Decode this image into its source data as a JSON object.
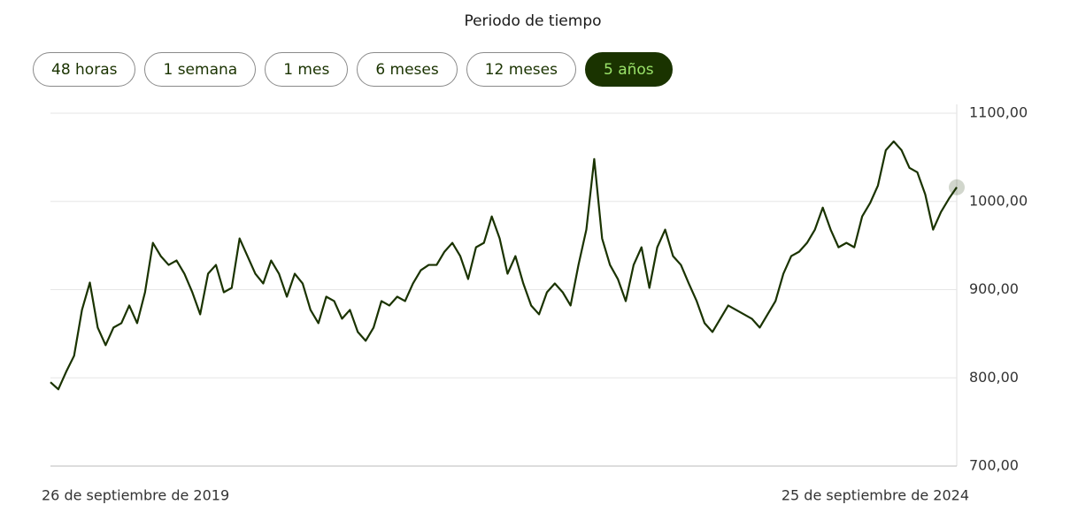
{
  "header": {
    "title": "Periodo de tiempo"
  },
  "buttons": [
    "48 horas",
    "1 semana",
    "1 mes",
    "6 meses",
    "12 meses",
    "5 años"
  ],
  "selected_button": 5,
  "chart_data": {
    "type": "line",
    "color": "#1a3300",
    "grid": true,
    "y_axis_side": "right",
    "ylim": [
      700,
      1100
    ],
    "yticks": [
      {
        "value": 700,
        "label": "700,00"
      },
      {
        "value": 800,
        "label": "800,00"
      },
      {
        "value": 900,
        "label": "900,00"
      },
      {
        "value": 1000,
        "label": "1000,00"
      },
      {
        "value": 1100,
        "label": "1100,00"
      }
    ],
    "categories": [
      "26 de septiembre de 2019",
      null,
      null,
      null,
      null,
      null,
      null,
      null,
      null,
      null,
      null,
      null,
      null,
      null,
      null,
      null,
      null,
      null,
      null,
      null,
      null,
      null,
      null,
      null,
      null,
      null,
      null,
      null,
      null,
      null,
      null,
      null,
      null,
      null,
      null,
      null,
      null,
      null,
      null,
      null,
      null,
      null,
      null,
      null,
      null,
      null,
      null,
      null,
      null,
      null,
      null,
      null,
      null,
      null,
      null,
      null,
      null,
      null,
      null,
      null,
      null,
      null,
      null,
      null,
      null,
      null,
      null,
      null,
      null,
      null,
      null,
      null,
      null,
      null,
      null,
      null,
      null,
      null,
      null,
      null,
      null,
      null,
      null,
      null,
      null,
      null,
      null,
      null,
      null,
      null,
      null,
      null,
      null,
      null,
      null,
      null,
      null,
      null,
      null,
      null,
      null,
      null,
      null,
      null,
      null,
      null,
      null,
      null,
      null,
      null,
      null,
      null,
      null,
      null,
      null,
      "25 de septiembre de 2024"
    ],
    "values": [
      795,
      787,
      807,
      825,
      877,
      908,
      857,
      837,
      857,
      862,
      882,
      862,
      897,
      953,
      938,
      928,
      933,
      918,
      897,
      872,
      918,
      928,
      897,
      902,
      958,
      938,
      918,
      907,
      933,
      918,
      892,
      918,
      907,
      877,
      862,
      892,
      887,
      867,
      877,
      852,
      842,
      857,
      887,
      882,
      892,
      887,
      907,
      922,
      928,
      928,
      943,
      953,
      938,
      912,
      948,
      953,
      983,
      958,
      918,
      938,
      907,
      882,
      872,
      897,
      907,
      897,
      882,
      928,
      968,
      1048,
      958,
      928,
      912,
      887,
      928,
      948,
      902,
      948,
      968,
      938,
      928,
      907,
      887,
      862,
      852,
      867,
      882,
      877,
      872,
      867,
      857,
      872,
      887,
      918,
      938,
      943,
      953,
      968,
      993,
      968,
      948,
      953,
      948,
      983,
      998,
      1018,
      1058,
      1068,
      1058,
      1038,
      1033,
      1008,
      968,
      988,
      1003,
      1016
    ]
  }
}
